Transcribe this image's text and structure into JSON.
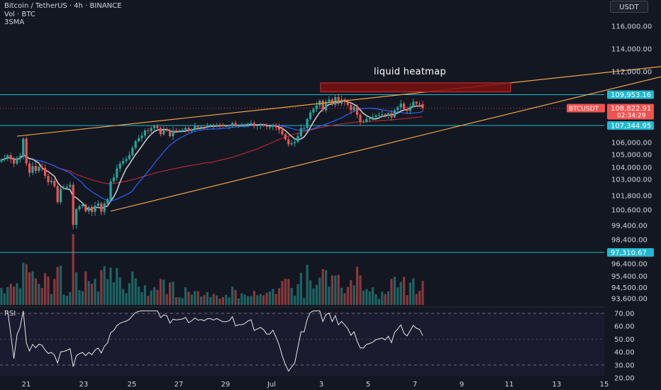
{
  "header": {
    "title": "Bitcoin / TetherUS · 4h · BINANCE",
    "volume_label": "Vol · BTC",
    "indicator_label": "3SMA"
  },
  "unit_badge": "USDT",
  "annotation": "liquid heatmap",
  "rsi_label": "RSI",
  "colors": {
    "background": "#131722",
    "up": "#26a69a",
    "down": "#ef5350",
    "trendline": "#f0a444",
    "level": "#22b8cf",
    "sma_fast": "#c8c8c8",
    "sma_mid": "#2962ff",
    "sma_slow": "#b22833",
    "heatmap_zone": "#d32f2f"
  },
  "chart_data": {
    "type": "candlestick",
    "symbol": "BTCUSDT",
    "timeframe": "4h",
    "price_axis": {
      "ticks": [
        "116,000.00",
        "114,000.00",
        "112,000.00",
        "106,000.00",
        "105,000.00",
        "104,000.00",
        "103,000.00",
        "101,800.00",
        "100,600.00",
        "99,400.00",
        "98,400.00",
        "96,400.00",
        "95,400.00",
        "94,500.00",
        "93,600.00"
      ],
      "tick_values": [
        116000,
        114000,
        112000,
        106000,
        105000,
        104000,
        103000,
        101800,
        100600,
        99400,
        98400,
        96400,
        95400,
        94500,
        93600
      ]
    },
    "time_axis": {
      "labels": [
        "21",
        "23",
        "25",
        "27",
        "29",
        "Jul",
        "3",
        "5",
        "7",
        "9",
        "11",
        "13",
        "15"
      ]
    },
    "price_tags": [
      {
        "label": "109,953.16",
        "value": 109953.16,
        "kind": "level"
      },
      {
        "label": "107,344.95",
        "value": 107344.95,
        "kind": "level"
      },
      {
        "label": "97,310.67",
        "value": 97310.67,
        "kind": "level"
      },
      {
        "label": "108,822.91",
        "value": 108822.91,
        "kind": "last"
      }
    ],
    "last_price_symbol": "BTCUSDT",
    "countdown": "02:34:29",
    "horizontal_levels": [
      109953.16,
      107344.95,
      97310.67
    ],
    "rsi": {
      "ticks": [
        "70.00",
        "60.00",
        "50.00",
        "40.00",
        "30.00",
        "20.00"
      ],
      "tick_values": [
        70,
        60,
        50,
        40,
        30,
        20
      ],
      "band": [
        30,
        70
      ]
    },
    "closes": [
      104600,
      104700,
      104950,
      104650,
      104300,
      104700,
      104900,
      106300,
      104300,
      103550,
      104100,
      103700,
      104050,
      103950,
      103300,
      102800,
      102900,
      102500,
      101250,
      102300,
      102350,
      102450,
      102600,
      99450,
      100650,
      100900,
      101050,
      100500,
      100850,
      100450,
      100950,
      101150,
      100450,
      101150,
      101500,
      102850,
      103150,
      103900,
      104300,
      104500,
      104650,
      104950,
      105550,
      106100,
      106350,
      106550,
      106950,
      106900,
      107150,
      107300,
      107150,
      106650,
      107000,
      106950,
      106500,
      106950,
      106900,
      106950,
      107000,
      107150,
      106900,
      107050,
      107300,
      107200,
      107250,
      107200,
      107350,
      107350,
      107300,
      107400,
      107350,
      107300,
      107300,
      107350,
      107550,
      107300,
      107350,
      107350,
      107400,
      107500,
      107550,
      107300,
      107350,
      107400,
      107350,
      107250,
      107250,
      107350,
      107200,
      107000,
      106650,
      106250,
      105850,
      105950,
      106050,
      106500,
      107150,
      107150,
      107900,
      108450,
      108750,
      109050,
      109450,
      108650,
      109350,
      109550,
      109100,
      109750,
      109200,
      109550,
      109350,
      109100,
      108650,
      108950,
      108250,
      107650,
      107650,
      107900,
      107950,
      108050,
      108200,
      108250,
      108300,
      108200,
      108400,
      108050,
      108650,
      108900,
      109200,
      108750,
      108600,
      108950,
      109350,
      109200,
      109150,
      108823
    ],
    "trendlines": [
      {
        "name": "upper-resistance",
        "from": {
          "bar": 5,
          "price": 106500
        },
        "to": {
          "bar": 230,
          "price": 113000
        }
      },
      {
        "name": "lower-support",
        "from": {
          "bar": 35,
          "price": 100500
        },
        "to": {
          "bar": 230,
          "price": 112800
        }
      }
    ],
    "heatmap_zone": {
      "price_high": 111000,
      "price_low": 110200
    }
  }
}
